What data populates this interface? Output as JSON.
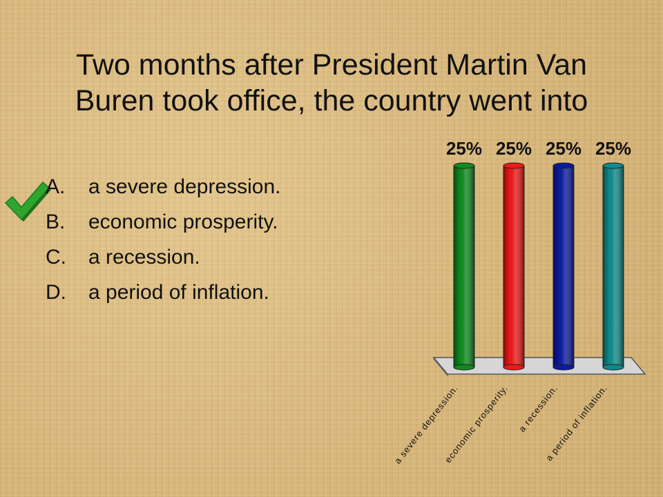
{
  "slide": {
    "title_line1": "Two months after President Martin Van",
    "title_line2": "Buren took office, the country went into",
    "answers": [
      {
        "letter": "A.",
        "text": "a severe depression.",
        "correct": true
      },
      {
        "letter": "B.",
        "text": "economic prosperity.",
        "correct": false
      },
      {
        "letter": "C.",
        "text": "a recession.",
        "correct": false
      },
      {
        "letter": "D.",
        "text": "a period of inflation.",
        "correct": false
      }
    ],
    "check_icon": "checkmark-icon",
    "check_color": "#2fa52f"
  },
  "chart_data": {
    "type": "bar",
    "categories": [
      "a severe depression.",
      "economic prosperity.",
      "a recession.",
      "a period of inflation."
    ],
    "values": [
      25,
      25,
      25,
      25
    ],
    "value_labels": [
      "25%",
      "25%",
      "25%",
      "25%"
    ],
    "colors": [
      "#0f8a1e",
      "#f01818",
      "#0b1aa0",
      "#0e8a8a"
    ],
    "title": "",
    "xlabel": "",
    "ylabel": "",
    "ylim": [
      0,
      25
    ],
    "grid": false
  }
}
